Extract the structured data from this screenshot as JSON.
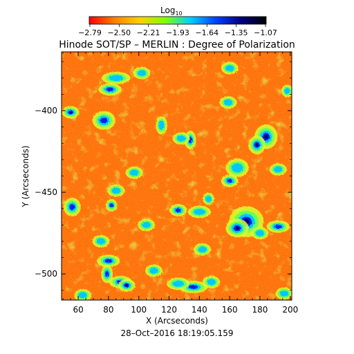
{
  "colorbar": {
    "label_main": "Log",
    "label_sub": "10",
    "ticks": [
      "−2.79",
      "−2.50",
      "−2.21",
      "−1.93",
      "−1.64",
      "−1.35",
      "−1.07"
    ],
    "colors": [
      "#ff0000",
      "#ff8000",
      "#ffd000",
      "#80ff00",
      "#00d0ff",
      "#0040ff",
      "#000080",
      "#000000"
    ]
  },
  "title": "Hinode SOT/SP – MERLIN : Degree of Polarization",
  "xlabel": "X (Arcseconds)",
  "ylabel": "Y (Arcseconds)",
  "timestamp": "28–Oct–2016 18:19:05.159",
  "chart_data": {
    "type": "heatmap",
    "title": "Hinode SOT/SP – MERLIN : Degree of Polarization",
    "xlabel": "X (Arcseconds)",
    "ylabel": "Y (Arcseconds)",
    "x_ticks": [
      60,
      80,
      100,
      120,
      140,
      160,
      180,
      200
    ],
    "y_ticks": [
      -400,
      -450,
      -500
    ],
    "xlim": [
      49,
      201
    ],
    "ylim": [
      -516,
      -364
    ],
    "colorbar_range": [
      -2.79,
      -1.07
    ],
    "colorbar_label": "Log10",
    "background_color": "#ff7a10",
    "active_regions": [
      {
        "x": 81,
        "y": -387,
        "rx": 4,
        "ry": 2,
        "level": 0.9
      },
      {
        "x": 85,
        "y": -380,
        "rx": 5,
        "ry": 2,
        "level": 0.7
      },
      {
        "x": 77,
        "y": -406,
        "rx": 4,
        "ry": 3,
        "level": 0.85
      },
      {
        "x": 55,
        "y": -401,
        "rx": 3,
        "ry": 2,
        "level": 0.95
      },
      {
        "x": 102,
        "y": -377,
        "rx": 3,
        "ry": 2,
        "level": 0.6
      },
      {
        "x": 115,
        "y": -409,
        "rx": 2,
        "ry": 3,
        "level": 0.75
      },
      {
        "x": 134,
        "y": -418,
        "rx": 2,
        "ry": 3,
        "level": 0.8
      },
      {
        "x": 128,
        "y": -417,
        "rx": 3,
        "ry": 2,
        "level": 0.7
      },
      {
        "x": 160,
        "y": -374,
        "rx": 3,
        "ry": 2,
        "level": 0.65
      },
      {
        "x": 159,
        "y": -395,
        "rx": 3,
        "ry": 2,
        "level": 0.6
      },
      {
        "x": 184,
        "y": -416,
        "rx": 4,
        "ry": 4,
        "level": 0.95
      },
      {
        "x": 178,
        "y": -421,
        "rx": 3,
        "ry": 3,
        "level": 0.95
      },
      {
        "x": 192,
        "y": -436,
        "rx": 3,
        "ry": 2,
        "level": 0.7
      },
      {
        "x": 165,
        "y": -435,
        "rx": 4,
        "ry": 3,
        "level": 0.7
      },
      {
        "x": 97,
        "y": -438,
        "rx": 3,
        "ry": 2,
        "level": 0.6
      },
      {
        "x": 82,
        "y": -458,
        "rx": 2,
        "ry": 2,
        "level": 0.9
      },
      {
        "x": 56,
        "y": -459,
        "rx": 3,
        "ry": 3,
        "level": 0.85
      },
      {
        "x": 85,
        "y": -449,
        "rx": 3,
        "ry": 2,
        "level": 0.7
      },
      {
        "x": 140,
        "y": -462,
        "rx": 4,
        "ry": 2,
        "level": 0.75
      },
      {
        "x": 126,
        "y": -461,
        "rx": 3,
        "ry": 2,
        "level": 0.9
      },
      {
        "x": 160,
        "y": -443,
        "rx": 3,
        "ry": 2,
        "level": 0.85
      },
      {
        "x": 146,
        "y": -454,
        "rx": 2,
        "ry": 2,
        "level": 0.65
      },
      {
        "x": 171,
        "y": -468,
        "rx": 6,
        "ry": 5,
        "level": 1.0
      },
      {
        "x": 165,
        "y": -472,
        "rx": 4,
        "ry": 3,
        "level": 0.95
      },
      {
        "x": 192,
        "y": -471,
        "rx": 4,
        "ry": 2,
        "level": 0.9
      },
      {
        "x": 180,
        "y": -475,
        "rx": 3,
        "ry": 2,
        "level": 0.75
      },
      {
        "x": 105,
        "y": -470,
        "rx": 3,
        "ry": 2,
        "level": 0.6
      },
      {
        "x": 75,
        "y": -480,
        "rx": 3,
        "ry": 2,
        "level": 0.65
      },
      {
        "x": 142,
        "y": -485,
        "rx": 3,
        "ry": 2,
        "level": 0.6
      },
      {
        "x": 80,
        "y": -492,
        "rx": 4,
        "ry": 2,
        "level": 0.9
      },
      {
        "x": 79,
        "y": -500,
        "rx": 2,
        "ry": 3,
        "level": 0.8
      },
      {
        "x": 88,
        "y": -505,
        "rx": 4,
        "ry": 2,
        "level": 1.0
      },
      {
        "x": 92,
        "y": -507,
        "rx": 3,
        "ry": 2,
        "level": 0.95
      },
      {
        "x": 110,
        "y": -498,
        "rx": 3,
        "ry": 2,
        "level": 0.65
      },
      {
        "x": 136,
        "y": -508,
        "rx": 5,
        "ry": 2,
        "level": 0.8
      },
      {
        "x": 126,
        "y": -506,
        "rx": 4,
        "ry": 2,
        "level": 0.7
      },
      {
        "x": 148,
        "y": -505,
        "rx": 3,
        "ry": 2,
        "level": 0.65
      },
      {
        "x": 63,
        "y": -513,
        "rx": 3,
        "ry": 2,
        "level": 0.7
      },
      {
        "x": 196,
        "y": -512,
        "rx": 3,
        "ry": 2,
        "level": 0.6
      },
      {
        "x": 198,
        "y": -388,
        "rx": 2,
        "ry": 2,
        "level": 0.6
      }
    ]
  }
}
